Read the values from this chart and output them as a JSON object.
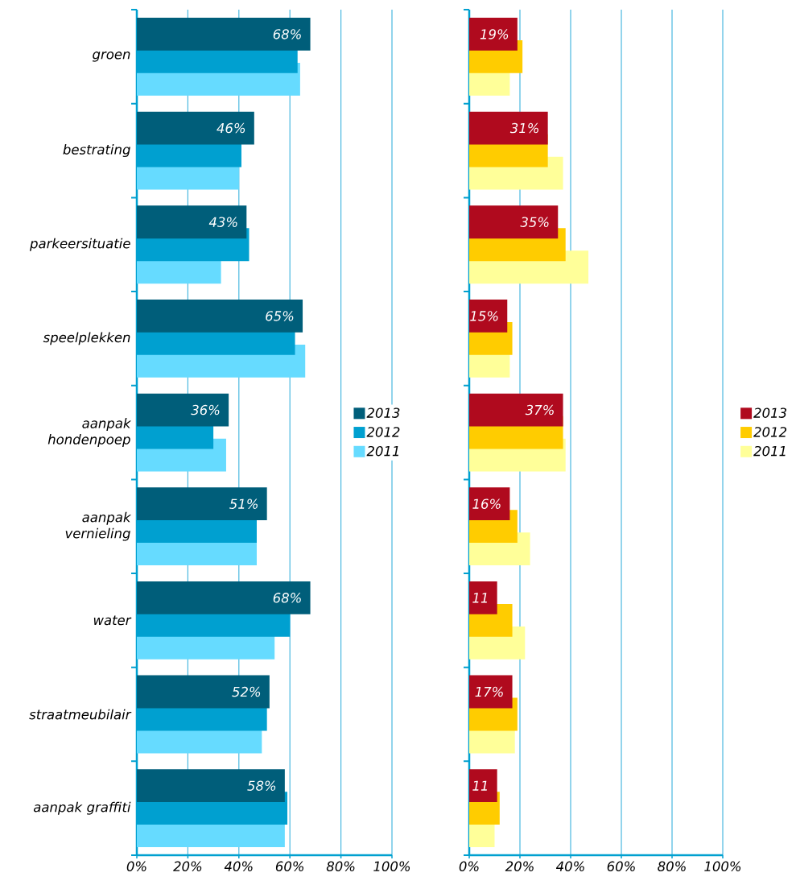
{
  "chart_data": [
    {
      "type": "bar",
      "orientation": "horizontal",
      "categories": [
        "groen",
        "bestrating",
        "parkeersituatie",
        "speelplekken",
        "aanpak hondenpoep",
        "aanpak vernieling",
        "water",
        "straatmeubilair",
        "aanpak graffiti"
      ],
      "series": [
        {
          "name": "2013",
          "color": "#005e7a",
          "values": [
            68,
            46,
            43,
            65,
            36,
            51,
            68,
            52,
            58
          ],
          "value_labels": [
            "68%",
            "46%",
            "43%",
            "65%",
            "36%",
            "51%",
            "68%",
            "52%",
            "58%"
          ]
        },
        {
          "name": "2012",
          "color": "#00a0d0",
          "values": [
            63,
            41,
            44,
            62,
            30,
            47,
            60,
            51,
            59
          ]
        },
        {
          "name": "2011",
          "color": "#66dbff",
          "values": [
            64,
            40,
            33,
            66,
            35,
            47,
            54,
            49,
            58
          ]
        }
      ],
      "xlim": [
        0,
        100
      ],
      "xticks": [
        {
          "value": 0,
          "label": "0%"
        },
        {
          "value": 20,
          "label": "20%"
        },
        {
          "value": 40,
          "label": "40%"
        },
        {
          "value": 60,
          "label": "60%"
        },
        {
          "value": 80,
          "label": "80%"
        },
        {
          "value": 100,
          "label": "100%"
        }
      ],
      "grid": "x",
      "legend": "right"
    },
    {
      "type": "bar",
      "orientation": "horizontal",
      "categories": [
        null,
        null,
        null,
        null,
        null,
        null,
        null,
        null,
        null
      ],
      "series": [
        {
          "name": "2013",
          "color": "#b00a1e",
          "values": [
            19,
            31,
            35,
            15,
            37,
            16,
            11,
            17,
            11
          ],
          "value_labels": [
            "19%",
            "31%",
            "35%",
            "15%",
            "37%",
            "16%",
            "11",
            "17%",
            "11"
          ]
        },
        {
          "name": "2012",
          "color": "#ffcc00",
          "values": [
            21,
            31,
            38,
            17,
            37,
            19,
            17,
            19,
            12
          ]
        },
        {
          "name": "2011",
          "color": "#ffff99",
          "values": [
            16,
            37,
            47,
            16,
            38,
            24,
            22,
            18,
            10
          ]
        }
      ],
      "xlim": [
        0,
        100
      ],
      "xticks": [
        {
          "value": 0,
          "label": "0%"
        },
        {
          "value": 20,
          "label": "20%"
        },
        {
          "value": 40,
          "label": "40%"
        },
        {
          "value": 60,
          "label": "60%"
        },
        {
          "value": 80,
          "label": "80%"
        },
        {
          "value": 100,
          "label": "100%"
        }
      ],
      "grid": "x",
      "legend": "right",
      "tick_labels": "x"
    }
  ]
}
